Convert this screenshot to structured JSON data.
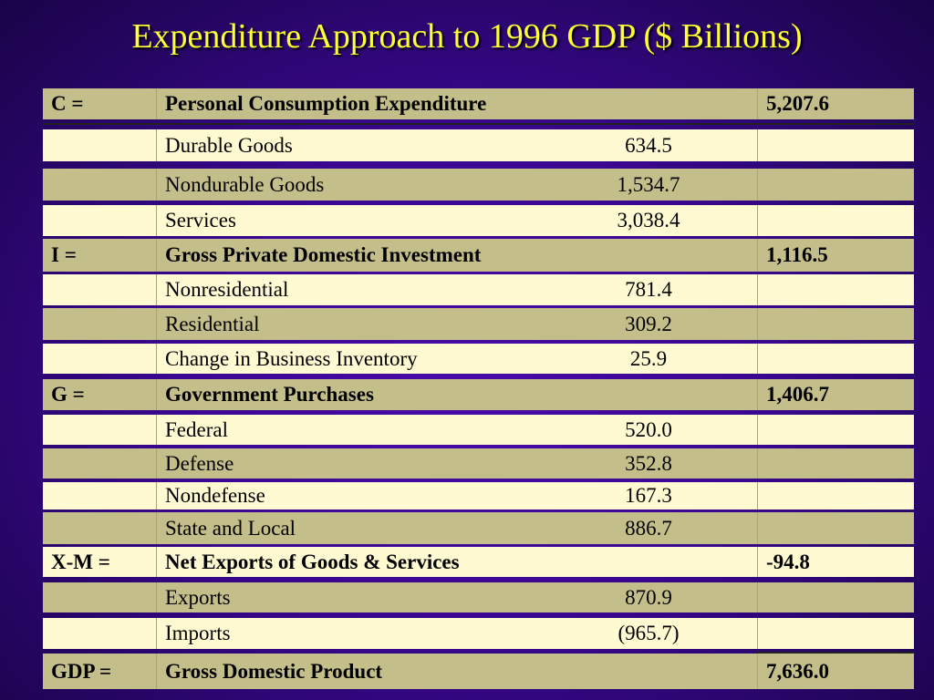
{
  "title": "Expenditure Approach to 1996 GDP ($ Billions)",
  "rows": [
    {
      "prefix": "C =",
      "label": "Personal Consumption Expenditure",
      "amount": "",
      "total": "5,207.6",
      "bold": true,
      "shade": "olive"
    },
    {
      "prefix": "",
      "label": "Durable Goods",
      "amount": "634.5",
      "total": "",
      "bold": false,
      "shade": "cream"
    },
    {
      "prefix": "",
      "label": "Nondurable Goods",
      "amount": "1,534.7",
      "total": "",
      "bold": false,
      "shade": "olive"
    },
    {
      "prefix": "",
      "label": "Services",
      "amount": "3,038.4",
      "total": "",
      "bold": false,
      "shade": "cream"
    },
    {
      "prefix": "I =",
      "label": "Gross Private Domestic Investment",
      "amount": "",
      "total": "1,116.5",
      "bold": true,
      "shade": "olive"
    },
    {
      "prefix": "",
      "label": "Nonresidential",
      "amount": "781.4",
      "total": "",
      "bold": false,
      "shade": "cream"
    },
    {
      "prefix": "",
      "label": "Residential",
      "amount": "309.2",
      "total": "",
      "bold": false,
      "shade": "olive"
    },
    {
      "prefix": "",
      "label": "Change in Business Inventory",
      "amount": "25.9",
      "total": "",
      "bold": false,
      "shade": "cream"
    },
    {
      "prefix": "G =",
      "label": "Government Purchases",
      "amount": "",
      "total": "1,406.7",
      "bold": true,
      "shade": "olive"
    },
    {
      "prefix": "",
      "label": "Federal",
      "amount": "520.0",
      "total": "",
      "bold": false,
      "shade": "cream"
    },
    {
      "prefix": "",
      "label": "Defense",
      "amount": "352.8",
      "total": "",
      "bold": false,
      "shade": "olive"
    },
    {
      "prefix": "",
      "label": "Nondefense",
      "amount": "167.3",
      "total": "",
      "bold": false,
      "shade": "cream"
    },
    {
      "prefix": "",
      "label": "State and Local",
      "amount": "886.7",
      "total": "",
      "bold": false,
      "shade": "olive"
    },
    {
      "prefix": "X-M =",
      "label": "Net Exports of Goods & Services",
      "amount": "",
      "total": "-94.8",
      "bold": true,
      "shade": "cream"
    },
    {
      "prefix": "",
      "label": "Exports",
      "amount": "870.9",
      "total": "",
      "bold": false,
      "shade": "olive"
    },
    {
      "prefix": "",
      "label": "Imports",
      "amount": "(965.7)",
      "total": "",
      "bold": false,
      "shade": "cream"
    },
    {
      "prefix": "GDP =",
      "label": "Gross Domestic Product",
      "amount": "",
      "total": "7,636.0",
      "bold": true,
      "shade": "olive"
    }
  ],
  "colors": {
    "background": "#3a0790",
    "title": "#ffff33",
    "row_olive": "#c4bf8a",
    "row_cream": "#fffad2"
  }
}
